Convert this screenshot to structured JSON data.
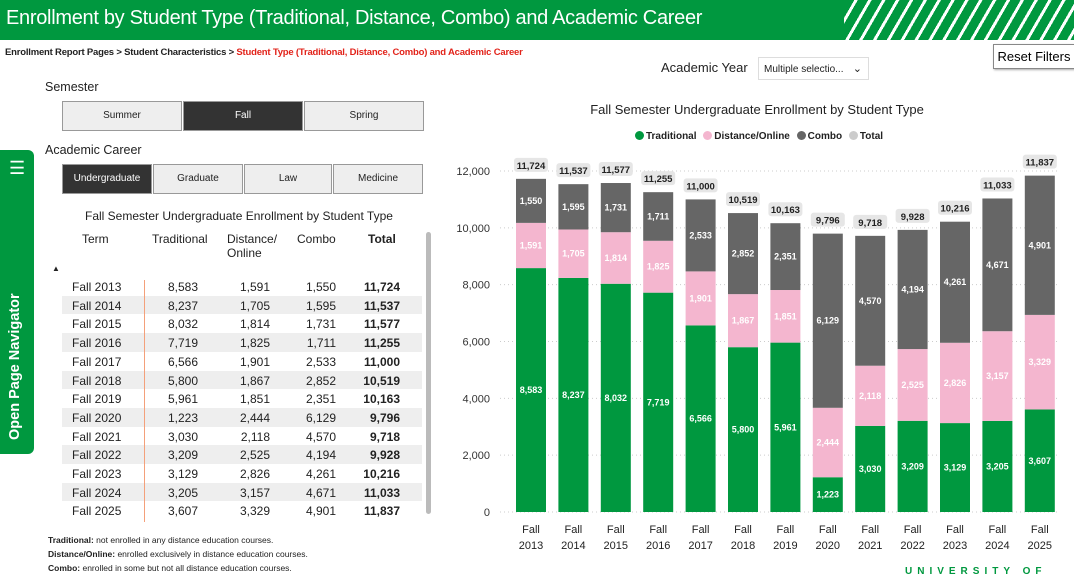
{
  "header": {
    "title": "Enrollment by Student Type (Traditional, Distance, Combo) and Academic Career"
  },
  "breadcrumb": {
    "items": [
      "Enrollment Report Pages",
      "Student Characteristics"
    ],
    "current": "Student Type (Traditional, Distance, Combo) and Academic Career",
    "separator": " > "
  },
  "reset_label": "Reset Filters",
  "academic_year": {
    "label": "Academic Year",
    "value": "Multiple selectio..."
  },
  "semester": {
    "label": "Semester",
    "options": [
      "Summer",
      "Fall",
      "Spring"
    ],
    "selected": "Fall"
  },
  "career": {
    "label": "Academic Career",
    "options": [
      "Undergraduate",
      "Graduate",
      "Law",
      "Medicine"
    ],
    "selected": "Undergraduate"
  },
  "navigator_label": "Open Page Navigator",
  "table": {
    "title": "Fall Semester Undergraduate Enrollment by Student Type",
    "columns": [
      "Term",
      "Traditional",
      "Distance/ Online",
      "Combo",
      "Total"
    ],
    "rows": [
      [
        "Fall 2013",
        "8,583",
        "1,591",
        "1,550",
        "11,724"
      ],
      [
        "Fall 2014",
        "8,237",
        "1,705",
        "1,595",
        "11,537"
      ],
      [
        "Fall 2015",
        "8,032",
        "1,814",
        "1,731",
        "11,577"
      ],
      [
        "Fall 2016",
        "7,719",
        "1,825",
        "1,711",
        "11,255"
      ],
      [
        "Fall 2017",
        "6,566",
        "1,901",
        "2,533",
        "11,000"
      ],
      [
        "Fall 2018",
        "5,800",
        "1,867",
        "2,852",
        "10,519"
      ],
      [
        "Fall 2019",
        "5,961",
        "1,851",
        "2,351",
        "10,163"
      ],
      [
        "Fall 2020",
        "1,223",
        "2,444",
        "6,129",
        "9,796"
      ],
      [
        "Fall 2021",
        "3,030",
        "2,118",
        "4,570",
        "9,718"
      ],
      [
        "Fall 2022",
        "3,209",
        "2,525",
        "4,194",
        "9,928"
      ],
      [
        "Fall 2023",
        "3,129",
        "2,826",
        "4,261",
        "10,216"
      ],
      [
        "Fall 2024",
        "3,205",
        "3,157",
        "4,671",
        "11,033"
      ],
      [
        "Fall 2025",
        "3,607",
        "3,329",
        "4,901",
        "11,837"
      ]
    ]
  },
  "notes": [
    {
      "term": "Traditional:",
      "text": " not enrolled in any distance education courses."
    },
    {
      "term": "Distance/Online:",
      "text": " enrolled exclusively in distance education courses."
    },
    {
      "term": "Combo:",
      "text": " enrolled in some but not all distance education courses."
    }
  ],
  "chart_data": {
    "type": "bar",
    "stacked": true,
    "title": "Fall Semester Undergraduate Enrollment by Student Type",
    "categories": [
      "Fall 2013",
      "Fall 2014",
      "Fall 2015",
      "Fall 2016",
      "Fall 2017",
      "Fall 2018",
      "Fall 2019",
      "Fall 2020",
      "Fall 2021",
      "Fall 2022",
      "Fall 2023",
      "Fall 2024",
      "Fall 2025"
    ],
    "series": [
      {
        "name": "Traditional",
        "color": "#00983f",
        "values": [
          8583,
          8237,
          8032,
          7719,
          6566,
          5800,
          5961,
          1223,
          3030,
          3209,
          3129,
          3205,
          3607
        ]
      },
      {
        "name": "Distance/Online",
        "color": "#f4b6cf",
        "values": [
          1591,
          1705,
          1814,
          1825,
          1901,
          1867,
          1851,
          2444,
          2118,
          2525,
          2826,
          3157,
          3329
        ]
      },
      {
        "name": "Combo",
        "color": "#666666",
        "values": [
          1550,
          1595,
          1731,
          1711,
          2533,
          2852,
          2351,
          6129,
          4570,
          4194,
          4261,
          4671,
          4901
        ]
      },
      {
        "name": "Total",
        "color": "#cccccc",
        "values": [
          11724,
          11537,
          11577,
          11255,
          11000,
          10519,
          10163,
          9796,
          9718,
          9928,
          10216,
          11033,
          11837
        ]
      }
    ],
    "yticks": [
      0,
      2000,
      4000,
      6000,
      8000,
      10000,
      12000
    ],
    "ylim": [
      0,
      12000
    ],
    "grid": true,
    "legend": "top"
  },
  "logo_text": "UNIVERSITY OF"
}
